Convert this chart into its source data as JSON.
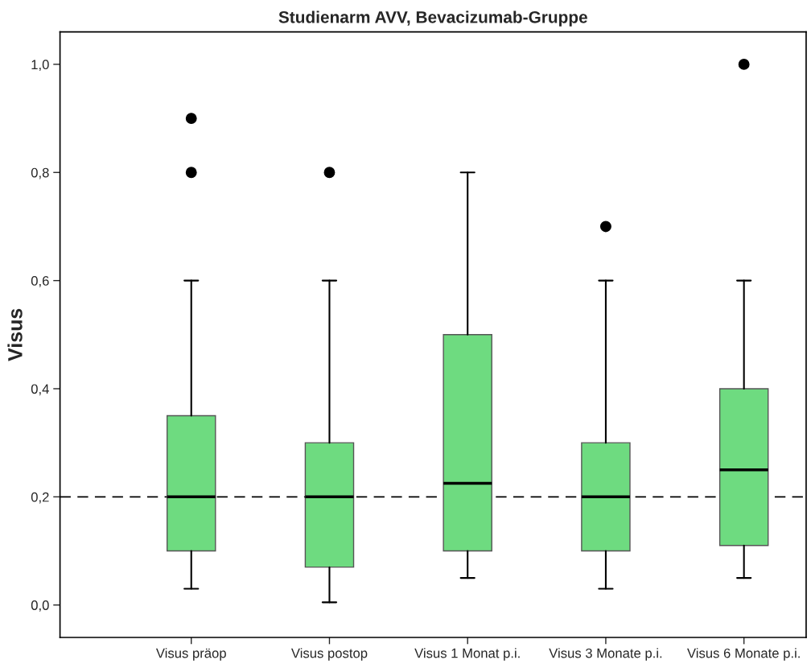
{
  "chart_data": {
    "type": "box",
    "title": "Studienarm AVV, Bevacizumab-Gruppe",
    "ylabel": "Visus",
    "categories": [
      "Visus präop",
      "Visus postop",
      "Visus 1 Monat p.i.",
      "Visus 3 Monate p.i.",
      "Visus 6 Monate p.i."
    ],
    "color": "#6edb80",
    "boxes": [
      {
        "low": 0.03,
        "q1": 0.1,
        "median": 0.2,
        "q3": 0.35,
        "high": 0.6,
        "outliers": [
          0.8,
          0.9
        ]
      },
      {
        "low": 0.005,
        "q1": 0.07,
        "median": 0.2,
        "q3": 0.3,
        "high": 0.6,
        "outliers": [
          0.8
        ]
      },
      {
        "low": 0.05,
        "q1": 0.1,
        "median": 0.225,
        "q3": 0.5,
        "high": 0.8
      },
      {
        "low": 0.03,
        "q1": 0.1,
        "median": 0.2,
        "q3": 0.3,
        "high": 0.6,
        "outliers": [
          0.7
        ]
      },
      {
        "low": 0.05,
        "q1": 0.11,
        "median": 0.25,
        "q3": 0.4,
        "high": 0.6,
        "outliers": [
          1.0
        ]
      }
    ],
    "ylim": [
      -0.06,
      1.06
    ],
    "yticks": [
      {
        "value": 0.0,
        "label": "0,0"
      },
      {
        "value": 0.2,
        "label": "0,2"
      },
      {
        "value": 0.4,
        "label": "0,4"
      },
      {
        "value": 0.6,
        "label": "0,6"
      },
      {
        "value": 0.8,
        "label": "0,8"
      },
      {
        "value": 1.0,
        "label": "1,0"
      }
    ],
    "ref_lines": [
      {
        "axis": "y",
        "value": 0.2,
        "line_style": "dashed",
        "color": "#000000"
      }
    ],
    "grid": false,
    "legend": false
  }
}
